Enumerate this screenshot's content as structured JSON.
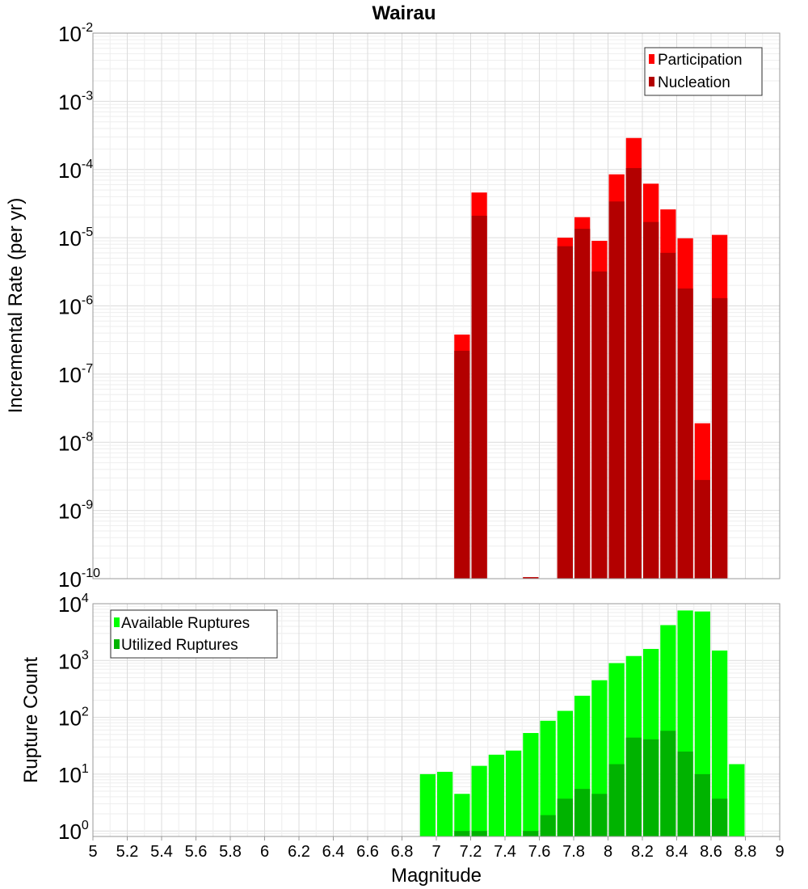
{
  "chart_data": [
    {
      "type": "bar",
      "title": "Wairau",
      "ylabel": "Incremental Rate (per yr)",
      "yscale": "log",
      "ylim": [
        1e-10,
        0.01
      ],
      "y_ticks": [
        {
          "base": "10",
          "exp": "-2"
        },
        {
          "base": "10",
          "exp": "-3"
        },
        {
          "base": "10",
          "exp": "-4"
        },
        {
          "base": "10",
          "exp": "-5"
        },
        {
          "base": "10",
          "exp": "-6"
        },
        {
          "base": "10",
          "exp": "-7"
        },
        {
          "base": "10",
          "exp": "-8"
        },
        {
          "base": "10",
          "exp": "-9"
        },
        {
          "base": "10",
          "exp": "-10"
        }
      ],
      "grid": true,
      "legend_position": "top-right",
      "series": [
        {
          "name": "Participation",
          "color": "#ff0000",
          "points": [
            [
              7.15,
              3.8e-07
            ],
            [
              7.25,
              4.6e-05
            ],
            [
              7.55,
              1.05e-10
            ],
            [
              7.75,
              1e-05
            ],
            [
              7.85,
              2e-05
            ],
            [
              7.95,
              9e-06
            ],
            [
              8.05,
              8.5e-05
            ],
            [
              8.15,
              0.00029
            ],
            [
              8.25,
              6.2e-05
            ],
            [
              8.35,
              2.6e-05
            ],
            [
              8.45,
              9.8e-06
            ],
            [
              8.55,
              1.9e-08
            ],
            [
              8.65,
              1.1e-05
            ]
          ]
        },
        {
          "name": "Nucleation",
          "color": "#b30000",
          "points": [
            [
              7.15,
              2.2e-07
            ],
            [
              7.25,
              2.1e-05
            ],
            [
              7.55,
              1.05e-10
            ],
            [
              7.75,
              7.5e-06
            ],
            [
              7.85,
              1.35e-05
            ],
            [
              7.95,
              3.2e-06
            ],
            [
              8.05,
              3.4e-05
            ],
            [
              8.15,
              0.000105
            ],
            [
              8.25,
              1.7e-05
            ],
            [
              8.35,
              6e-06
            ],
            [
              8.45,
              1.8e-06
            ],
            [
              8.55,
              2.8e-09
            ],
            [
              8.65,
              1.3e-06
            ]
          ]
        }
      ]
    },
    {
      "type": "bar",
      "xlabel": "Magnitude",
      "ylabel": "Rupture Count",
      "yscale": "log",
      "ylim": [
        0.8,
        10000
      ],
      "xlim": [
        5,
        9
      ],
      "x_ticks": [
        "5",
        "5.2",
        "5.4",
        "5.6",
        "5.8",
        "6",
        "6.2",
        "6.4",
        "6.6",
        "6.8",
        "7",
        "7.2",
        "7.4",
        "7.6",
        "7.8",
        "8",
        "8.2",
        "8.4",
        "8.6",
        "8.8",
        "9"
      ],
      "y_ticks": [
        {
          "base": "10",
          "exp": "4"
        },
        {
          "base": "10",
          "exp": "3"
        },
        {
          "base": "10",
          "exp": "2"
        },
        {
          "base": "10",
          "exp": "1"
        },
        {
          "base": "10",
          "exp": "0"
        }
      ],
      "grid": true,
      "legend_position": "top-left",
      "series": [
        {
          "name": "Available Ruptures",
          "color": "#00ff00",
          "points": [
            [
              6.95,
              10
            ],
            [
              7.05,
              11
            ],
            [
              7.15,
              4.5
            ],
            [
              7.25,
              14
            ],
            [
              7.35,
              22
            ],
            [
              7.45,
              26
            ],
            [
              7.55,
              53
            ],
            [
              7.65,
              87
            ],
            [
              7.75,
              130
            ],
            [
              7.85,
              240
            ],
            [
              7.95,
              450
            ],
            [
              8.05,
              900
            ],
            [
              8.15,
              1200
            ],
            [
              8.25,
              1600
            ],
            [
              8.35,
              4200
            ],
            [
              8.45,
              7600
            ],
            [
              8.55,
              7300
            ],
            [
              8.65,
              1500
            ],
            [
              8.75,
              15
            ]
          ]
        },
        {
          "name": "Utilized Ruptures",
          "color": "#00b300",
          "points": [
            [
              7.15,
              1
            ],
            [
              7.25,
              1
            ],
            [
              7.55,
              1
            ],
            [
              7.65,
              1.9
            ],
            [
              7.75,
              3.7
            ],
            [
              7.85,
              5.5
            ],
            [
              7.95,
              4.5
            ],
            [
              8.05,
              15
            ],
            [
              8.15,
              44
            ],
            [
              8.25,
              41
            ],
            [
              8.35,
              58
            ],
            [
              8.45,
              25
            ],
            [
              8.55,
              10
            ],
            [
              8.65,
              3.7
            ]
          ]
        }
      ]
    }
  ]
}
